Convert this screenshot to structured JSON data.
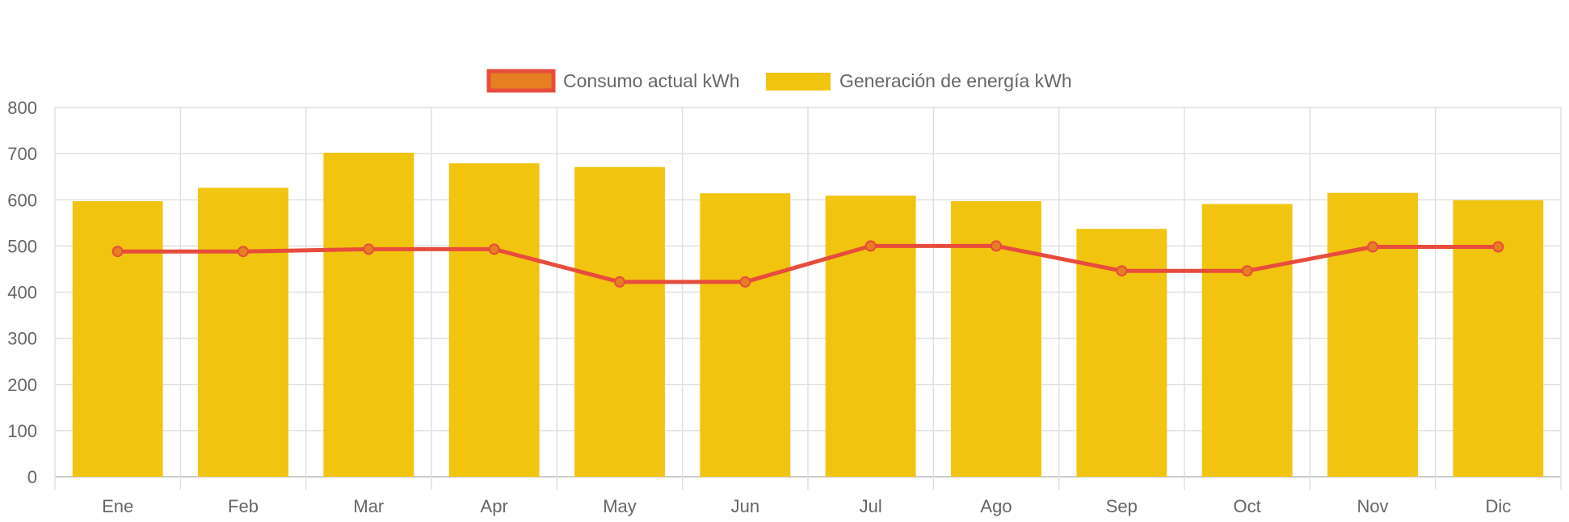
{
  "chart_data": {
    "type": "bar",
    "categories": [
      "Ene",
      "Feb",
      "Mar",
      "Apr",
      "May",
      "Jun",
      "Jul",
      "Ago",
      "Sep",
      "Oct",
      "Nov",
      "Dic"
    ],
    "series": [
      {
        "name": "Consumo actual kWh",
        "type": "line",
        "color": "#e74c3c",
        "point_fill": "#e67e22",
        "values": [
          488,
          488,
          493,
          493,
          422,
          422,
          500,
          500,
          446,
          446,
          498,
          498
        ]
      },
      {
        "name": "Generación de energía kWh",
        "type": "bar",
        "color": "#f1c40f",
        "values": [
          597,
          626,
          702,
          679,
          671,
          614,
          609,
          597,
          537,
          591,
          615,
          599
        ]
      }
    ],
    "yticks": [
      "0",
      "100",
      "200",
      "300",
      "400",
      "500",
      "600",
      "700",
      "800"
    ],
    "ylim": [
      0,
      800
    ],
    "grid": true,
    "legend": "top-center"
  }
}
